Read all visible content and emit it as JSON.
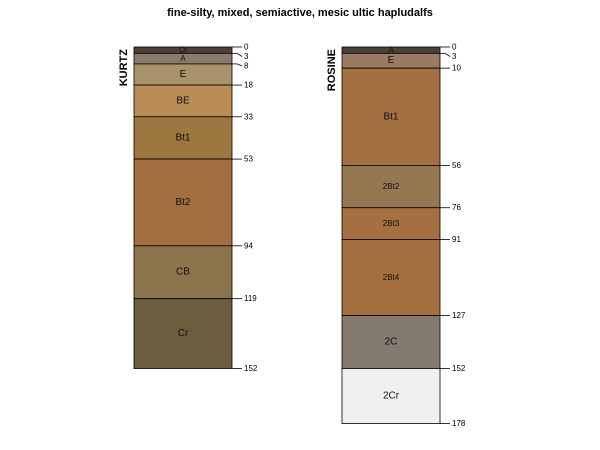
{
  "chart_data": {
    "type": "soil-profile-sketch",
    "title": "fine-silty, mixed, semiactive, mesic ultic hapludalfs",
    "depth_units": "cm",
    "profiles": [
      {
        "name": "KURTZ",
        "max_depth": 152,
        "horizons": [
          {
            "name": "Oi",
            "top": 0,
            "bottom": 3,
            "color": "#4e4139",
            "label_color": "#dddddd",
            "size": "small"
          },
          {
            "name": "A",
            "top": 3,
            "bottom": 8,
            "color": "#8a7a6c",
            "label_color": "#ffffff",
            "size": "small"
          },
          {
            "name": "E",
            "top": 8,
            "bottom": 18,
            "color": "#a9936a",
            "label_color": "#111111",
            "size": "normal"
          },
          {
            "name": "BE",
            "top": 18,
            "bottom": 33,
            "color": "#b98d55",
            "label_color": "#111111",
            "size": "normal"
          },
          {
            "name": "Bt1",
            "top": 33,
            "bottom": 53,
            "color": "#9c7840",
            "label_color": "#ffffff",
            "size": "normal"
          },
          {
            "name": "Bt2",
            "top": 53,
            "bottom": 94,
            "color": "#a46f40",
            "label_color": "#ffffff",
            "size": "normal"
          },
          {
            "name": "CB",
            "top": 94,
            "bottom": 119,
            "color": "#8b744c",
            "label_color": "#ffffff",
            "size": "normal"
          },
          {
            "name": "Cr",
            "top": 119,
            "bottom": 152,
            "color": "#6c5d3e",
            "label_color": "#ffffff",
            "size": "normal"
          }
        ],
        "depth_labels": [
          0,
          3,
          8,
          18,
          33,
          53,
          94,
          119,
          152
        ]
      },
      {
        "name": "ROSINE",
        "max_depth": 178,
        "horizons": [
          {
            "name": "A",
            "top": 0,
            "bottom": 3,
            "color": "#4c3f36",
            "label_color": "#dddddd",
            "size": "small"
          },
          {
            "name": "E",
            "top": 3,
            "bottom": 10,
            "color": "#9a7a62",
            "label_color": "#ffffff",
            "size": "normal"
          },
          {
            "name": "Bt1",
            "top": 10,
            "bottom": 56,
            "color": "#a57040",
            "label_color": "#ffffff",
            "size": "normal"
          },
          {
            "name": "2Bt2",
            "top": 56,
            "bottom": 76,
            "color": "#957852",
            "label_color": "#ffffff",
            "size": "small"
          },
          {
            "name": "2Bt3",
            "top": 76,
            "bottom": 91,
            "color": "#a57040",
            "label_color": "#ffffff",
            "size": "small"
          },
          {
            "name": "2Bt4",
            "top": 91,
            "bottom": 127,
            "color": "#a57040",
            "label_color": "#ffffff",
            "size": "small"
          },
          {
            "name": "2C",
            "top": 127,
            "bottom": 152,
            "color": "#857a70",
            "label_color": "#ffffff",
            "size": "normal"
          },
          {
            "name": "2Cr",
            "top": 152,
            "bottom": 178,
            "color": "#f0f0f0",
            "label_color": "#111111",
            "size": "normal"
          }
        ],
        "depth_labels": [
          0,
          3,
          10,
          56,
          76,
          91,
          127,
          152,
          178
        ]
      }
    ]
  }
}
